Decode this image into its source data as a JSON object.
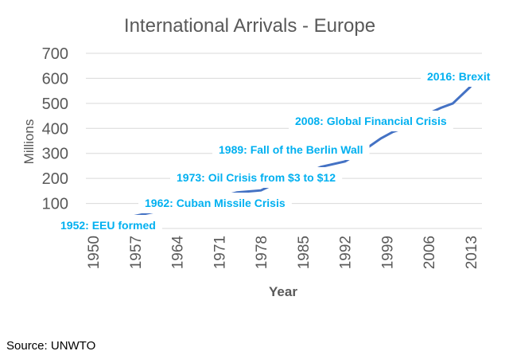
{
  "chart_data": {
    "type": "line",
    "title": "International Arrivals - Europe",
    "xlabel": "Year",
    "ylabel": "Millions",
    "ylim": [
      0,
      700
    ],
    "xlim": [
      1950,
      2013
    ],
    "yticks": [
      "100",
      "200",
      "300",
      "400",
      "500",
      "600",
      "700"
    ],
    "xticks": [
      "1950",
      "1957",
      "1964",
      "1971",
      "1978",
      "1985",
      "1992",
      "1999",
      "2006",
      "2013"
    ],
    "grid": true,
    "series": [
      {
        "name": "International Arrivals - Europe",
        "color": "#4472C4",
        "x": [
          1950,
          1955,
          1960,
          1965,
          1970,
          1974,
          1978,
          1980,
          1985,
          1988,
          1992,
          1995,
          1998,
          2000,
          2003,
          2006,
          2008,
          2010,
          2013
        ],
        "y": [
          20,
          40,
          65,
          95,
          120,
          144,
          152,
          175,
          215,
          246,
          268,
          310,
          360,
          386,
          410,
          460,
          482,
          500,
          568
        ]
      }
    ],
    "annotations": [
      {
        "text": "2016: Brexit"
      },
      {
        "text": "2008: Global Financial Crisis"
      },
      {
        "text": "1989: Fall of the Berlin Wall"
      },
      {
        "text": "1973: Oil Crisis from $3 to $12"
      },
      {
        "text": "1962: Cuban Missile Crisis"
      },
      {
        "text": "1952: EEU formed"
      }
    ],
    "annotation_color": "#00B0F0"
  },
  "source": "Source: UNWTO"
}
